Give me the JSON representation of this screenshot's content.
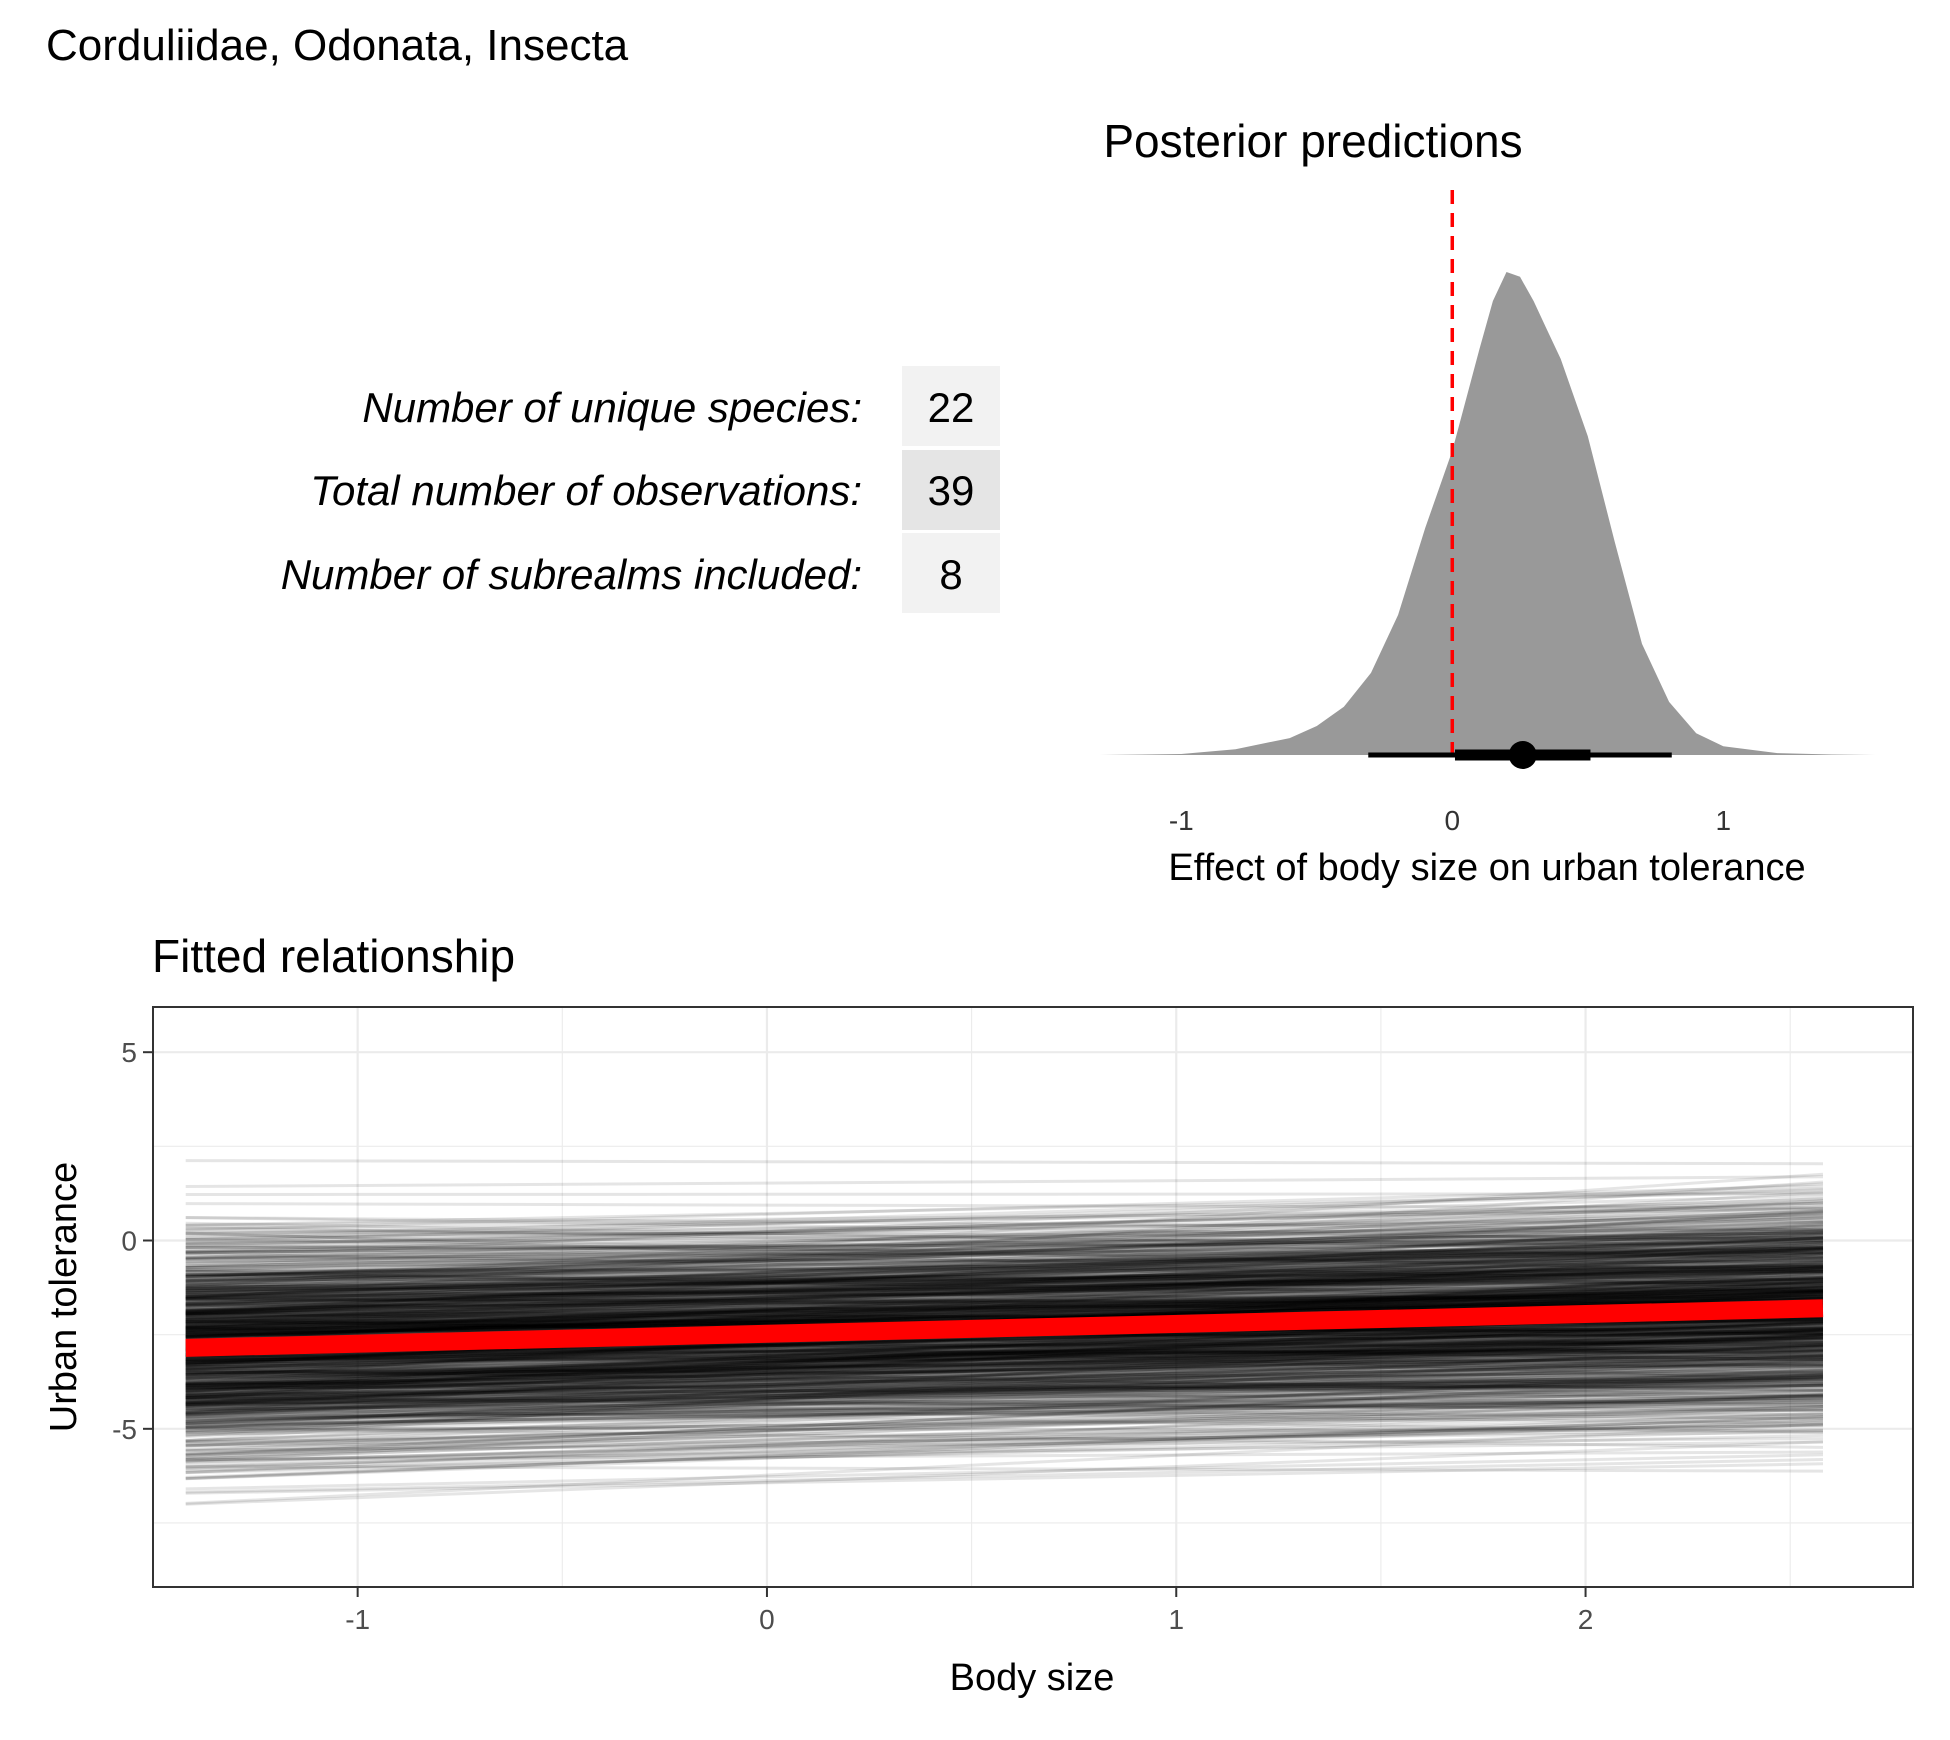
{
  "page_title": "Corduliidae, Odonata, Insecta",
  "stats": [
    {
      "label": "Number of unique species:",
      "value": "22"
    },
    {
      "label": "Total number of observations:",
      "value": "39"
    },
    {
      "label": "Number of subrealms included:",
      "value": "8"
    }
  ],
  "colors": {
    "density_fill": "#999999",
    "zero_line": "#ff0000",
    "fit_line": "#ff0000",
    "draw_lines": "#000000",
    "stat_cell_light": "#f2f2f2",
    "stat_cell_dark": "#e5e5e5",
    "grid": "#ebebeb",
    "panel_border": "#333333"
  },
  "chart_data": [
    {
      "type": "area",
      "title": "Posterior predictions",
      "xlabel": "Effect of body size on urban tolerance",
      "ylabel": "",
      "xlim": [
        -1.3,
        1.56
      ],
      "x_ticks": [
        -1,
        0,
        1
      ],
      "x_tick_labels": [
        "-1",
        "0",
        "1"
      ],
      "grid": false,
      "reference_line": {
        "x": 0,
        "style": "dashed",
        "color": "#ff0000"
      },
      "density": {
        "x": [
          -1.3,
          -1.0,
          -0.8,
          -0.6,
          -0.5,
          -0.4,
          -0.3,
          -0.2,
          -0.1,
          0.0,
          0.1,
          0.15,
          0.2,
          0.25,
          0.3,
          0.35,
          0.4,
          0.5,
          0.6,
          0.7,
          0.8,
          0.9,
          1.0,
          1.2,
          1.4,
          1.56
        ],
        "density": [
          0.0,
          0.002,
          0.012,
          0.035,
          0.06,
          0.1,
          0.17,
          0.29,
          0.47,
          0.63,
          0.84,
          0.94,
          1.0,
          0.99,
          0.94,
          0.88,
          0.82,
          0.66,
          0.44,
          0.23,
          0.11,
          0.045,
          0.018,
          0.004,
          0.001,
          0.0
        ]
      },
      "point_interval": {
        "point": 0.26,
        "inner_interval": [
          0.01,
          0.51
        ],
        "outer_interval": [
          -0.31,
          0.81
        ]
      }
    },
    {
      "type": "line",
      "title": "Fitted relationship",
      "xlabel": "Body size",
      "ylabel": "Urban tolerance",
      "xlim": [
        -1.5,
        2.8
      ],
      "ylim": [
        -9.2,
        6.2
      ],
      "x_ticks": [
        -1,
        0,
        1,
        2
      ],
      "x_tick_labels": [
        "-1",
        "0",
        "1",
        "2"
      ],
      "y_ticks": [
        -5,
        0,
        5
      ],
      "y_tick_labels": [
        "-5",
        "0",
        "5"
      ],
      "grid": true,
      "x_range": [
        -1.42,
        2.58
      ],
      "fitted_line": {
        "x": [
          -1.42,
          2.58
        ],
        "y": [
          -2.85,
          -1.8
        ]
      },
      "posterior_draws": {
        "count": 1000,
        "intercept_mean": -2.48,
        "intercept_sd": 1.45,
        "slope_mean": 0.26,
        "slope_sd": 0.2
      }
    }
  ]
}
